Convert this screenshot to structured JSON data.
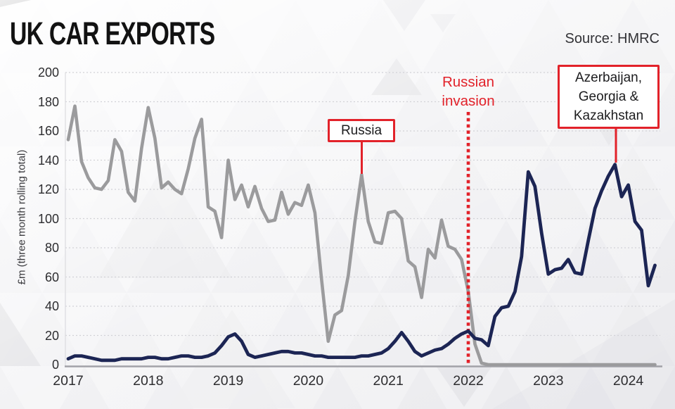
{
  "header": {
    "title": "UK CAR EXPORTS",
    "source": "Source: HMRC"
  },
  "chart_data": {
    "type": "line",
    "title": "UK CAR EXPORTS",
    "ylabel": "£m (three month rolling total)",
    "ylim": [
      0,
      200
    ],
    "yticks": [
      0,
      20,
      40,
      60,
      80,
      100,
      120,
      140,
      160,
      180,
      200
    ],
    "xticks": [
      "2017",
      "2018",
      "2019",
      "2020",
      "2021",
      "2022",
      "2023",
      "2024"
    ],
    "x_start": "2017-01",
    "x_end": "2024-05",
    "x_interval": "monthly",
    "grid": "horizontal-dotted",
    "legend": "annotated-labels",
    "series": [
      {
        "name": "Russia",
        "color": "#9b9b9d",
        "values": [
          154,
          177,
          139,
          128,
          121,
          120,
          126,
          154,
          146,
          118,
          112,
          148,
          176,
          155,
          121,
          125,
          120,
          117,
          134,
          155,
          168,
          108,
          105,
          87,
          140,
          113,
          123,
          108,
          122,
          107,
          98,
          99,
          118,
          103,
          111,
          109,
          123,
          104,
          58,
          16,
          34,
          37,
          61,
          98,
          130,
          98,
          84,
          83,
          104,
          105,
          100,
          71,
          67,
          46,
          79,
          73,
          99,
          81,
          79,
          72,
          50,
          14,
          1,
          0,
          0,
          0,
          0,
          0,
          0,
          0,
          0,
          0,
          0,
          0,
          0,
          0,
          0,
          0,
          0,
          0,
          0,
          0,
          0,
          0,
          0,
          0,
          0,
          0,
          0
        ]
      },
      {
        "name": "Azerbaijan, Georgia & Kazakhstan",
        "color": "#1c2554",
        "values": [
          4,
          6,
          6,
          5,
          4,
          3,
          3,
          3,
          4,
          4,
          4,
          4,
          5,
          5,
          4,
          4,
          5,
          6,
          6,
          5,
          5,
          6,
          8,
          13,
          19,
          21,
          16,
          7,
          5,
          6,
          7,
          8,
          9,
          9,
          8,
          8,
          7,
          6,
          6,
          5,
          5,
          5,
          5,
          5,
          6,
          6,
          7,
          8,
          11,
          16,
          22,
          16,
          9,
          6,
          8,
          10,
          11,
          14,
          18,
          21,
          23,
          18,
          17,
          13,
          33,
          39,
          40,
          50,
          74,
          132,
          122,
          90,
          62,
          65,
          66,
          72,
          63,
          62,
          85,
          107,
          119,
          129,
          137,
          115,
          123,
          98,
          92,
          54,
          68
        ]
      }
    ],
    "annotations": {
      "russia_label": {
        "text": "Russia"
      },
      "agk_label": {
        "lines": [
          "Azerbaijan,",
          "Georgia &",
          "Kazakhstan"
        ]
      },
      "invasion": {
        "lines": [
          "Russian",
          "invasion"
        ],
        "at": "2022-02"
      }
    },
    "colors": {
      "accent_red": "#e2222a",
      "russia_line": "#9b9b9d",
      "agk_line": "#1c2554"
    }
  }
}
